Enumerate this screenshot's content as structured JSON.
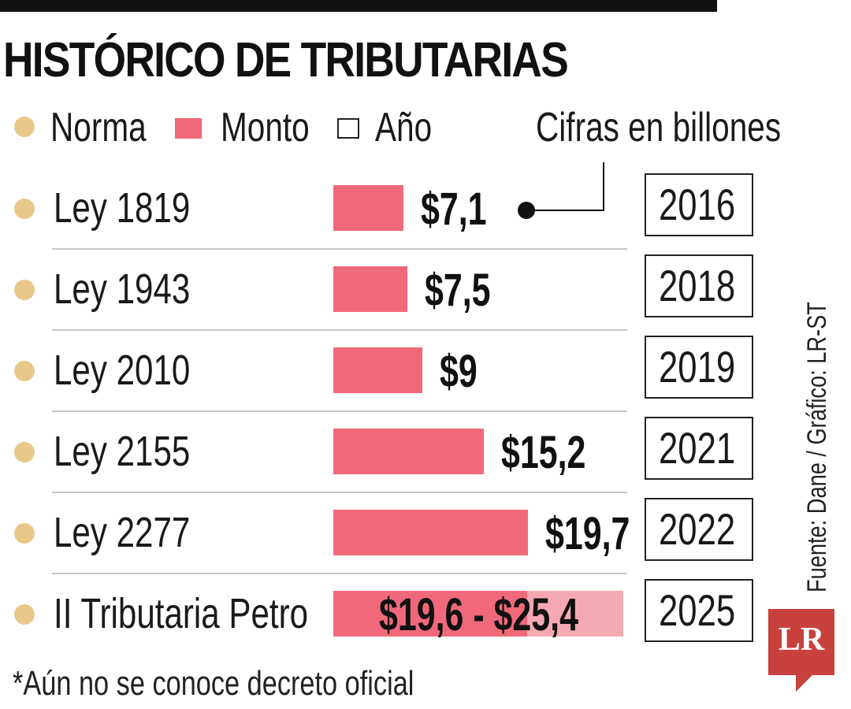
{
  "title": "HISTÓRICO DE TRIBUTARIAS",
  "legend": {
    "norma": "Norma",
    "monto": "Monto",
    "anio": "Año"
  },
  "note": "Cifras en billones",
  "source": "Fuente: Dane / Gráfico: LR-ST",
  "footnote": "*Aún no se conoce decreto oficial",
  "logo": "LR",
  "colors": {
    "bar": "#f0697a",
    "bar_range": "#f4a9b2",
    "dot": "#e8c88a",
    "logo": "#c9413e"
  },
  "chart_data": {
    "type": "bar",
    "title": "HISTÓRICO DE TRIBUTARIAS",
    "unit": "billones",
    "orientation": "horizontal",
    "xlim": [
      0,
      28
    ],
    "categories": [
      "Ley 1819",
      "Ley 1943",
      "Ley 2010",
      "Ley 2155",
      "Ley 2277",
      "II Tributaria Petro"
    ],
    "years": [
      "2016",
      "2018",
      "2019",
      "2021",
      "2022",
      "2025"
    ],
    "values": [
      7.1,
      7.5,
      9,
      15.2,
      19.7,
      19.6
    ],
    "range_high": [
      null,
      null,
      null,
      null,
      null,
      25.4
    ],
    "labels": [
      "$7,1",
      "$7,5",
      "$9",
      "$15,2",
      "$19,7",
      "$19,6 - $25,4"
    ],
    "legend": [
      "Norma",
      "Monto",
      "Año"
    ],
    "annotation": "Cifras en billones"
  }
}
